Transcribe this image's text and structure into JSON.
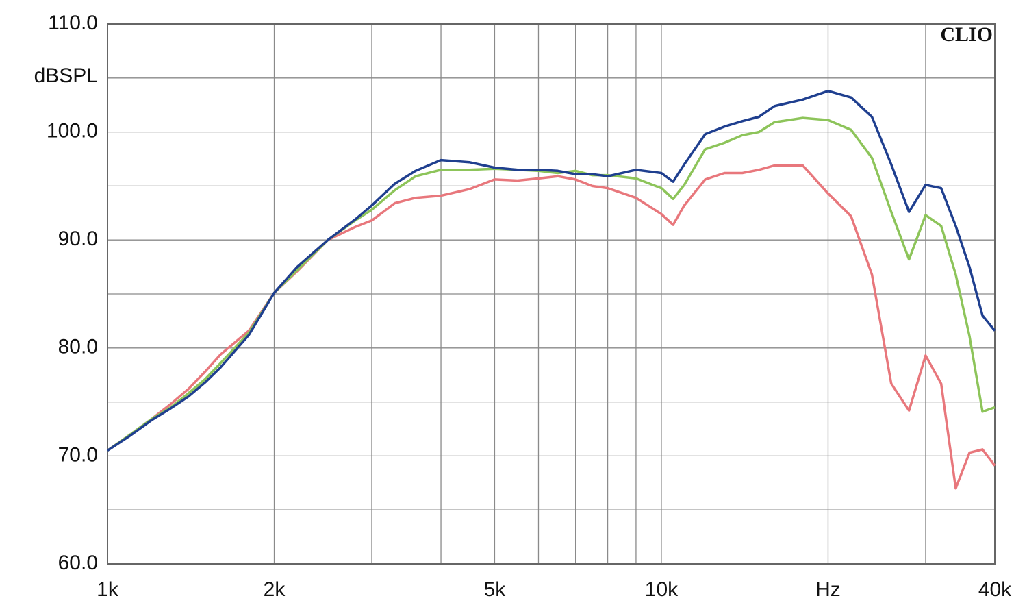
{
  "chart_data": {
    "type": "line",
    "y_label": "dBSPL",
    "annotation": "CLIO",
    "log_x": true,
    "grid": true,
    "x": [
      1000,
      1100,
      1200,
      1300,
      1400,
      1500,
      1600,
      1800,
      2000,
      2200,
      2500,
      2800,
      3000,
      3300,
      3600,
      4000,
      4500,
      5000,
      5500,
      6000,
      6500,
      7000,
      7500,
      8000,
      9000,
      10000,
      10500,
      11000,
      12000,
      13000,
      14000,
      15000,
      16000,
      18000,
      20000,
      22000,
      24000,
      26000,
      28000,
      30000,
      32000,
      34000,
      36000,
      38000,
      40000
    ],
    "series": [
      {
        "color": "#1f3f8f",
        "values": [
          70.5,
          71.9,
          73.3,
          74.4,
          75.5,
          76.8,
          78.2,
          81.2,
          85.1,
          87.5,
          90.0,
          91.9,
          93.2,
          95.2,
          96.4,
          97.4,
          97.2,
          96.7,
          96.5,
          96.5,
          96.4,
          96.1,
          96.1,
          95.9,
          96.5,
          96.2,
          95.4,
          97.0,
          99.8,
          100.5,
          101.0,
          101.4,
          102.4,
          103.0,
          103.8,
          103.2,
          101.4,
          97.0,
          92.6,
          95.1,
          94.8,
          91.3,
          87.5,
          83.0,
          81.6
        ]
      },
      {
        "color": "#8dc45a",
        "values": [
          70.5,
          72.0,
          73.4,
          74.5,
          75.8,
          77.1,
          78.6,
          81.4,
          85.1,
          87.2,
          90.0,
          91.8,
          92.8,
          94.6,
          95.9,
          96.5,
          96.5,
          96.6,
          96.5,
          96.4,
          96.2,
          96.4,
          96.0,
          96.0,
          95.7,
          94.8,
          93.8,
          95.1,
          98.4,
          99.0,
          99.7,
          100.0,
          100.9,
          101.3,
          101.1,
          100.2,
          97.6,
          92.6,
          88.2,
          92.3,
          91.3,
          86.8,
          81.1,
          74.1,
          74.5
        ]
      },
      {
        "color": "#e8777c",
        "values": [
          70.5,
          72.0,
          73.4,
          74.8,
          76.2,
          77.8,
          79.4,
          81.6,
          85.1,
          87.1,
          90.0,
          91.2,
          91.8,
          93.4,
          93.9,
          94.1,
          94.7,
          95.6,
          95.5,
          95.7,
          95.9,
          95.6,
          95.0,
          94.8,
          93.9,
          92.4,
          91.4,
          93.2,
          95.6,
          96.2,
          96.2,
          96.5,
          96.9,
          96.9,
          94.3,
          92.2,
          86.8,
          76.7,
          74.2,
          79.3,
          76.7,
          67.0,
          70.3,
          70.6,
          69.1
        ]
      }
    ],
    "xlim": [
      1000,
      40000
    ],
    "ylim": [
      60,
      110
    ],
    "xticks": [
      {
        "value": 1000,
        "label": "1k"
      },
      {
        "value": 2000,
        "label": "2k"
      },
      {
        "value": 5000,
        "label": "5k"
      },
      {
        "value": 10000,
        "label": "10k"
      },
      {
        "value": 20000,
        "label": "Hz"
      },
      {
        "value": 40000,
        "label": "40k"
      }
    ],
    "xgrid_minor": [
      3000,
      4000,
      6000,
      7000,
      8000,
      9000,
      30000
    ],
    "yticks": [
      {
        "value": 60,
        "label": "60.0"
      },
      {
        "value": 70,
        "label": "70.0"
      },
      {
        "value": 80,
        "label": "80.0"
      },
      {
        "value": 90,
        "label": "90.0"
      },
      {
        "value": 100,
        "label": "100.0"
      },
      {
        "value": 110,
        "label": "110.0"
      }
    ],
    "ygrid_minor": [
      65,
      75,
      85,
      95,
      105
    ]
  }
}
